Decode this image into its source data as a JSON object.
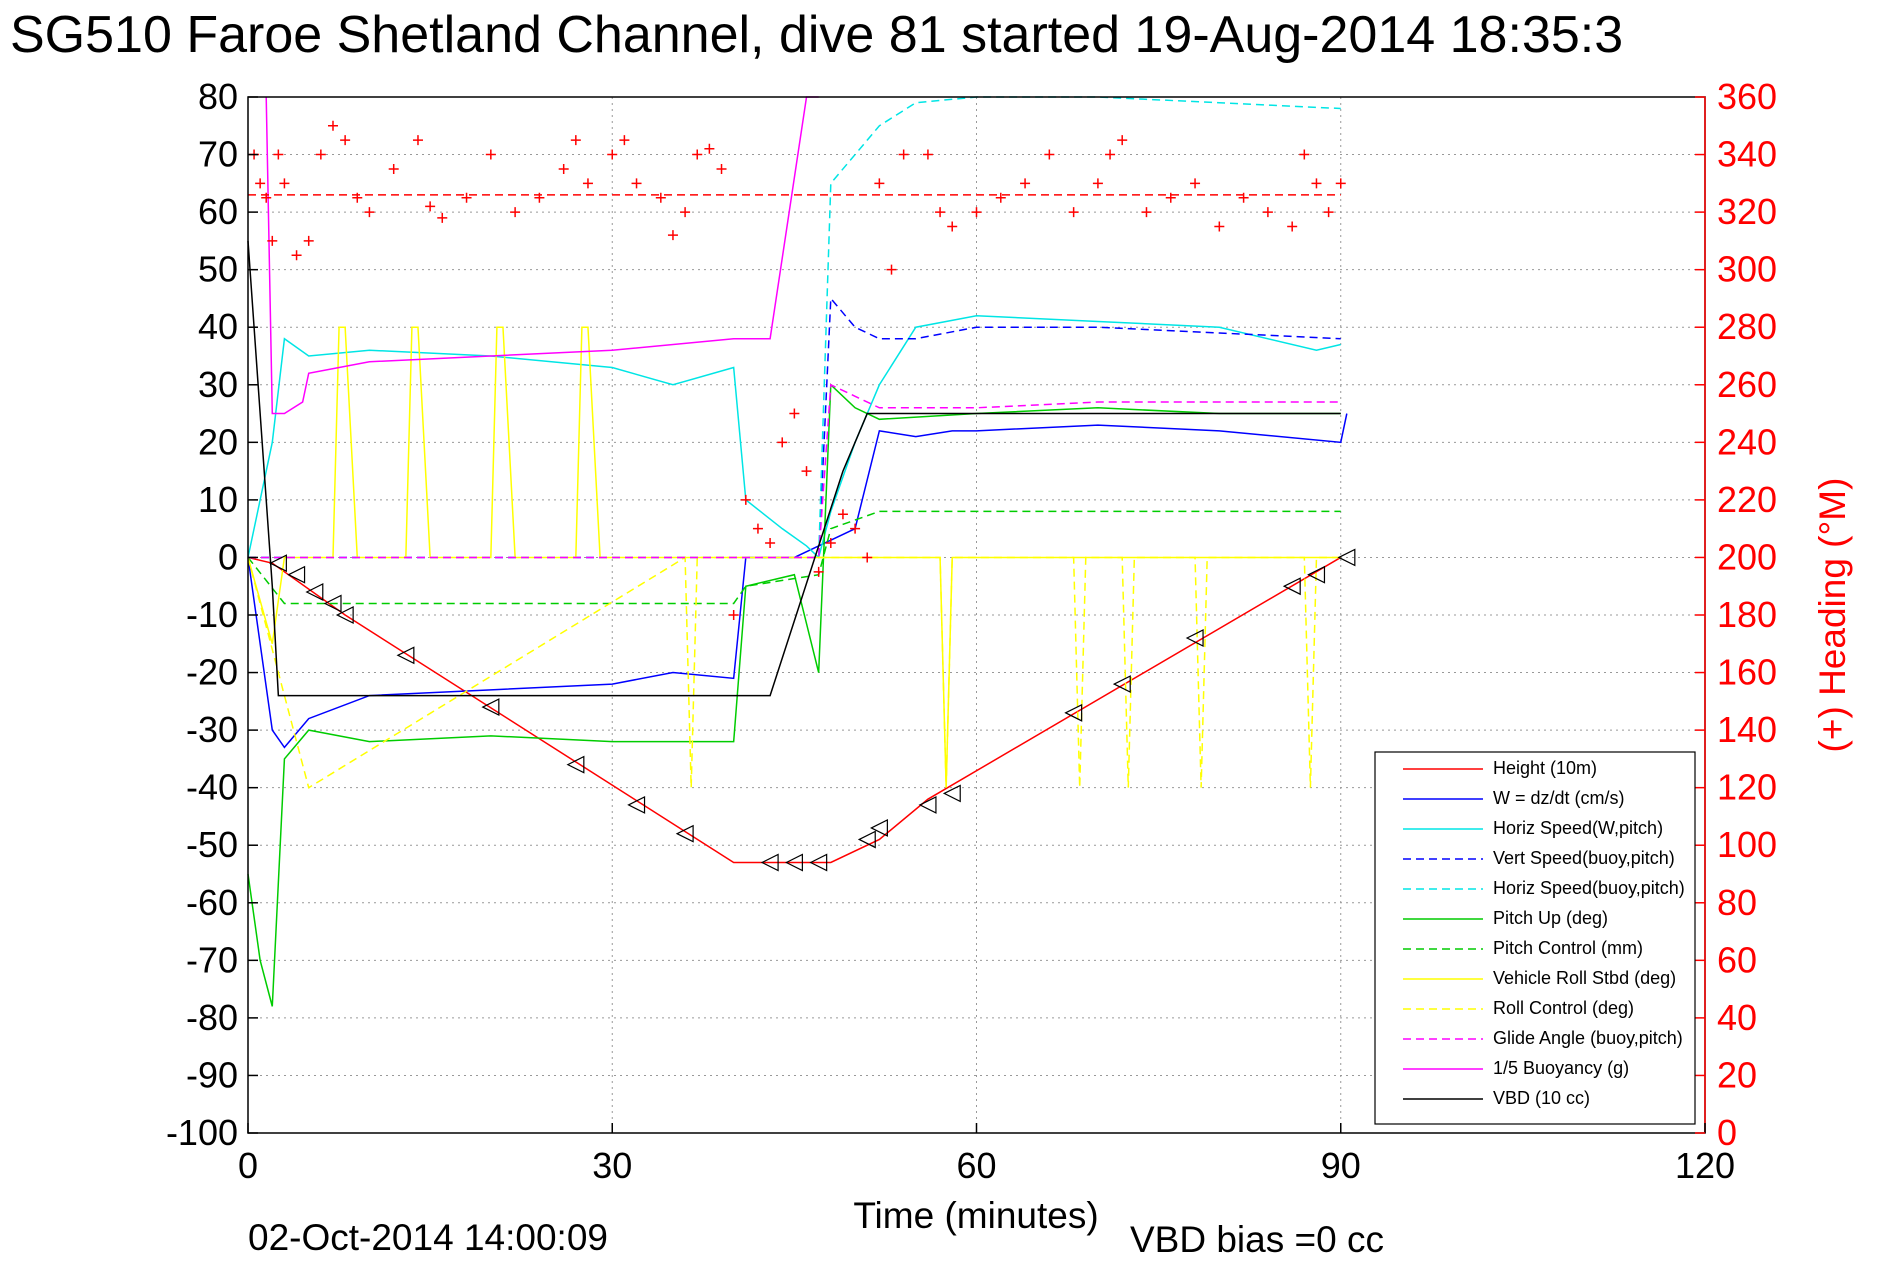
{
  "chart_data": {
    "type": "line",
    "title": "SG510 Faroe Shetland Channel, dive 81 started 19-Aug-2014 18:35:3",
    "xlabel": "Time (minutes)",
    "ylabel_right": "(+) Heading (°M)",
    "footer_left": "02-Oct-2014 14:00:09",
    "footer_right": "VBD bias =0 cc",
    "xlim": [
      0,
      120
    ],
    "ylim": [
      -100,
      80
    ],
    "ylim_right": [
      0,
      360
    ],
    "x_ticks": [
      "0",
      "30",
      "60",
      "90",
      "120"
    ],
    "y_ticks": [
      "80",
      "70",
      "60",
      "50",
      "40",
      "30",
      "20",
      "10",
      "0",
      "-10",
      "-20",
      "-30",
      "-40",
      "-50",
      "-60",
      "-70",
      "-80",
      "-90",
      "-100"
    ],
    "y_ticks_right": [
      "360",
      "340",
      "320",
      "300",
      "280",
      "260",
      "240",
      "220",
      "200",
      "180",
      "160",
      "140",
      "120",
      "100",
      "80",
      "60",
      "40",
      "20",
      "0"
    ],
    "grid": true,
    "legend_position": "bottom-right",
    "colors": {
      "left_axis": "#000000",
      "right_axis": "#ff0000"
    },
    "series": [
      {
        "name": "Height (10m)",
        "color": "#ff0000",
        "style": "solid",
        "x": [
          0,
          2,
          8,
          40,
          43,
          48,
          52,
          56,
          90
        ],
        "y": [
          0,
          -1,
          -10,
          -53,
          -53,
          -53,
          -49,
          -42,
          0
        ]
      },
      {
        "name": "W = dz/dt (cm/s)",
        "color": "#0000ff",
        "style": "solid",
        "x": [
          0,
          1,
          2,
          3,
          5,
          10,
          20,
          30,
          35,
          40,
          41,
          45,
          47,
          48,
          50,
          52,
          55,
          58,
          60,
          70,
          80,
          90,
          90.5
        ],
        "y": [
          0,
          -15,
          -30,
          -33,
          -28,
          -24,
          -23,
          -22,
          -20,
          -21,
          0,
          0,
          2,
          3,
          5,
          22,
          21,
          22,
          22,
          23,
          22,
          20,
          25
        ]
      },
      {
        "name": "Horiz Speed(W,pitch)",
        "color": "#00e5e5",
        "style": "solid",
        "x": [
          0,
          2,
          3,
          5,
          10,
          20,
          30,
          35,
          40,
          41,
          44,
          46,
          47,
          48,
          50,
          52,
          55,
          60,
          70,
          80,
          88,
          90
        ],
        "y": [
          0,
          20,
          38,
          35,
          36,
          35,
          33,
          30,
          33,
          10,
          5,
          2,
          0,
          8,
          20,
          30,
          40,
          42,
          41,
          40,
          36,
          37
        ]
      },
      {
        "name": "Vert Speed(buoy,pitch)",
        "color": "#0000ff",
        "style": "dashed",
        "x": [
          0,
          40,
          47,
          48,
          50,
          52,
          55,
          60,
          70,
          80,
          90
        ],
        "y": [
          0,
          0,
          0,
          45,
          40,
          38,
          38,
          40,
          40,
          39,
          38
        ]
      },
      {
        "name": "Horiz Speed(buoy,pitch)",
        "color": "#00e5e5",
        "style": "dashed",
        "x": [
          0,
          40,
          47,
          48,
          50,
          52,
          55,
          60,
          70,
          80,
          90
        ],
        "y": [
          0,
          0,
          0,
          65,
          70,
          75,
          79,
          80,
          80,
          79,
          78
        ]
      },
      {
        "name": "Pitch Up (deg)",
        "color": "#00cc00",
        "style": "solid",
        "x": [
          0,
          1,
          2,
          3,
          5,
          10,
          20,
          30,
          40,
          41,
          45,
          47,
          48,
          50,
          52,
          60,
          70,
          80,
          90
        ],
        "y": [
          -55,
          -70,
          -78,
          -35,
          -30,
          -32,
          -31,
          -32,
          -32,
          -5,
          -3,
          -20,
          30,
          26,
          24,
          25,
          26,
          25,
          25
        ]
      },
      {
        "name": "Pitch Control (mm)",
        "color": "#00cc00",
        "style": "dashed",
        "x": [
          0,
          3,
          10,
          40,
          41,
          47,
          48,
          52,
          90
        ],
        "y": [
          0,
          -8,
          -8,
          -8,
          -5,
          -3,
          5,
          8,
          8
        ]
      },
      {
        "name": "Vehicle Roll Stbd (deg)",
        "color": "#ffff00",
        "style": "solid",
        "x": [
          0,
          2,
          3,
          7,
          7.5,
          8,
          9,
          13,
          13.5,
          14,
          15,
          20,
          20.5,
          21,
          22,
          27,
          27.5,
          28,
          29,
          36,
          40,
          45,
          50,
          57,
          57.5,
          58,
          60,
          70,
          90
        ],
        "y": [
          0,
          -15,
          0,
          0,
          40,
          40,
          0,
          0,
          40,
          40,
          0,
          0,
          40,
          40,
          0,
          0,
          40,
          40,
          0,
          0,
          0,
          0,
          0,
          0,
          -40,
          0,
          0,
          0,
          0
        ]
      },
      {
        "name": "Roll Control (deg)",
        "color": "#ffff00",
        "style": "dashed",
        "x": [
          0,
          5,
          36,
          36.5,
          37,
          57,
          57.5,
          58,
          68,
          68.5,
          69,
          72,
          72.5,
          73,
          78,
          78.5,
          79,
          87,
          87.5,
          88,
          90
        ],
        "y": [
          0,
          -40,
          0,
          -40,
          0,
          0,
          -40,
          0,
          0,
          -40,
          0,
          0,
          -40,
          0,
          0,
          -40,
          0,
          0,
          -40,
          0,
          0
        ]
      },
      {
        "name": "Glide Angle (buoy,pitch)",
        "color": "#ff00ff",
        "style": "dashed",
        "x": [
          0,
          40,
          47,
          48,
          50,
          52,
          60,
          70,
          80,
          90
        ],
        "y": [
          0,
          0,
          0,
          30,
          28,
          26,
          26,
          27,
          27,
          27
        ]
      },
      {
        "name": "1/5 Buoyancy (g)",
        "color": "#ff00ff",
        "style": "solid",
        "x": [
          1.5,
          2,
          3,
          4.5,
          5,
          10,
          20,
          30,
          40,
          43,
          46,
          47
        ],
        "y": [
          80,
          25,
          25,
          27,
          32,
          34,
          35,
          36,
          38,
          38,
          80,
          80
        ]
      },
      {
        "name": "VBD (10 cc)",
        "color": "#000000",
        "style": "solid",
        "x": [
          0,
          2,
          2.5,
          43,
          49,
          51,
          90
        ],
        "y": [
          55,
          -5,
          -24,
          -24,
          15,
          25,
          25
        ]
      }
    ],
    "heading_markers": {
      "name": "(+) Heading",
      "color": "#ff0000",
      "axis": "right",
      "x": [
        0.5,
        1,
        1.5,
        2,
        2.5,
        3,
        4,
        5,
        6,
        7,
        8,
        9,
        10,
        12,
        14,
        15,
        16,
        18,
        20,
        22,
        24,
        26,
        27,
        28,
        30,
        31,
        32,
        34,
        35,
        36,
        37,
        38,
        39,
        40,
        41,
        42,
        43,
        44,
        45,
        46,
        47,
        48,
        49,
        50,
        51,
        52,
        53,
        54,
        56,
        57,
        58,
        60,
        62,
        64,
        66,
        68,
        70,
        71,
        72,
        74,
        76,
        78,
        80,
        82,
        84,
        86,
        87,
        88,
        89,
        90
      ],
      "y": [
        340,
        330,
        325,
        310,
        340,
        330,
        305,
        310,
        340,
        350,
        345,
        325,
        320,
        335,
        345,
        322,
        318,
        325,
        340,
        320,
        325,
        335,
        345,
        330,
        340,
        345,
        330,
        325,
        312,
        320,
        340,
        342,
        335,
        180,
        220,
        210,
        205,
        240,
        250,
        230,
        195,
        205,
        215,
        210,
        200,
        330,
        300,
        340,
        340,
        320,
        315,
        320,
        325,
        330,
        340,
        320,
        330,
        340,
        345,
        320,
        325,
        330,
        315,
        325,
        320,
        315,
        340,
        330,
        320,
        330
      ]
    },
    "heading_reference": {
      "value": 326,
      "color": "#ff0000",
      "style": "dashed",
      "axis": "right"
    },
    "dive_markers": {
      "name": "Height triangles",
      "color": "#000000",
      "x": [
        2.5,
        4,
        5.5,
        7,
        8,
        13,
        20,
        27,
        32,
        36,
        43,
        45,
        47,
        51,
        52,
        56,
        58,
        68,
        72,
        78,
        86,
        88,
        90.5
      ],
      "y": [
        -1,
        -3,
        -6,
        -8,
        -10,
        -17,
        -26,
        -36,
        -43,
        -48,
        -53,
        -53,
        -53,
        -49,
        -47,
        -43,
        -41,
        -27,
        -22,
        -14,
        -5,
        -3,
        0
      ]
    }
  }
}
